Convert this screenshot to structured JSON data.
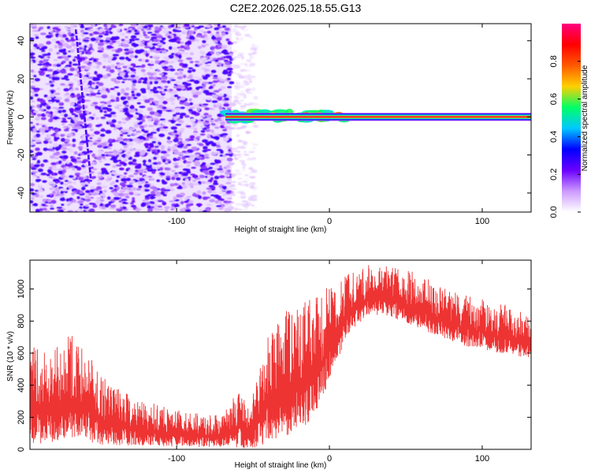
{
  "title": "C2E2.2026.025.18.55.G13",
  "chart_data": [
    {
      "type": "heatmap",
      "xlabel": "Height of straight line (km)",
      "ylabel": "Frequency (Hz)",
      "xlim": [
        -196,
        132
      ],
      "ylim": [
        -50,
        49
      ],
      "xticks": [
        -100,
        0,
        100
      ],
      "xtick_labels": [
        "-100",
        "0",
        "100"
      ],
      "yticks": [
        -40,
        -20,
        0,
        20,
        40
      ],
      "ytick_labels": [
        "-40",
        "-20",
        "0",
        "20",
        "40"
      ],
      "colorbar": {
        "label": "Normalized spectral amplitude",
        "range": [
          0,
          1
        ],
        "ticks": [
          0,
          0.2,
          0.4,
          0.6,
          0.8
        ],
        "tick_labels": [
          "0.0",
          "0.2",
          "0.4",
          "0.6",
          "0.8"
        ],
        "colors": [
          "#ffffff",
          "#cc99ff",
          "#6a00ff",
          "#0000ff",
          "#00c8ff",
          "#00ff66",
          "#ffd000",
          "#ff5a00",
          "#ff0000",
          "#ff0080"
        ]
      },
      "regions": [
        {
          "kind": "noise",
          "x_range": [
            -196,
            -64
          ],
          "freq_range": [
            -50,
            49
          ],
          "amplitude": 0.2
        },
        {
          "kind": "sparse-noise",
          "x_range": [
            -64,
            -48
          ],
          "freq_range": [
            -50,
            49
          ],
          "amplitude": 0.08
        },
        {
          "kind": "drift-line",
          "from": [
            -166,
            46
          ],
          "to": [
            -156,
            -34
          ],
          "amplitude": 0.25
        },
        {
          "kind": "carrier-spread",
          "x_range": [
            -68,
            12
          ],
          "freq_center": 0.5,
          "freq_halfwidth": 2.5,
          "amplitude": 0.85
        },
        {
          "kind": "carrier",
          "x_range": [
            -68,
            132
          ],
          "freq_center": 0,
          "amplitude": 0.95
        }
      ]
    },
    {
      "type": "line",
      "xlabel": "Height of straight line (km)",
      "ylabel": "SNR (10 * v/v)",
      "xlim": [
        -196,
        132
      ],
      "ylim": [
        0,
        1180
      ],
      "xticks": [
        -100,
        0,
        100
      ],
      "xtick_labels": [
        "-100",
        "0",
        "100"
      ],
      "yticks": [
        0,
        200,
        400,
        600,
        800,
        1000
      ],
      "ytick_labels": [
        "0",
        "200",
        "400",
        "600",
        "800",
        "1000"
      ],
      "color": "#ee3333",
      "envelope": [
        {
          "x": -196,
          "low": 40,
          "high": 650
        },
        {
          "x": -185,
          "low": 30,
          "high": 600
        },
        {
          "x": -170,
          "low": 60,
          "high": 720
        },
        {
          "x": -160,
          "low": 50,
          "high": 640
        },
        {
          "x": -150,
          "low": 30,
          "high": 460
        },
        {
          "x": -130,
          "low": 20,
          "high": 340
        },
        {
          "x": -110,
          "low": 20,
          "high": 270
        },
        {
          "x": -90,
          "low": 15,
          "high": 230
        },
        {
          "x": -70,
          "low": 15,
          "high": 210
        },
        {
          "x": -60,
          "low": 10,
          "high": 380
        },
        {
          "x": -52,
          "low": 5,
          "high": 250
        },
        {
          "x": -45,
          "low": 20,
          "high": 600
        },
        {
          "x": -35,
          "low": 60,
          "high": 820
        },
        {
          "x": -25,
          "low": 100,
          "high": 900
        },
        {
          "x": -15,
          "low": 150,
          "high": 960
        },
        {
          "x": -5,
          "low": 300,
          "high": 990
        },
        {
          "x": 5,
          "low": 560,
          "high": 1040
        },
        {
          "x": 15,
          "low": 750,
          "high": 1120
        },
        {
          "x": 25,
          "low": 830,
          "high": 1150
        },
        {
          "x": 35,
          "low": 840,
          "high": 1150
        },
        {
          "x": 50,
          "low": 790,
          "high": 1130
        },
        {
          "x": 70,
          "low": 710,
          "high": 1040
        },
        {
          "x": 90,
          "low": 640,
          "high": 960
        },
        {
          "x": 110,
          "low": 600,
          "high": 910
        },
        {
          "x": 132,
          "low": 560,
          "high": 880
        }
      ]
    }
  ]
}
